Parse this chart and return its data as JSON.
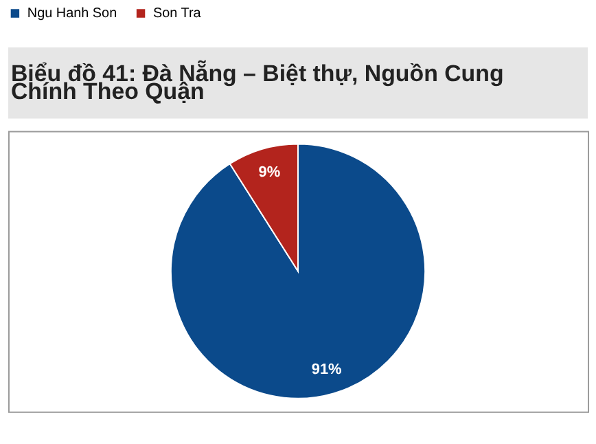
{
  "chart_data": {
    "type": "pie",
    "title": "Biểu đồ 41: Đà Nẵng – Biệt thự, Nguồn Cung Chính Theo Quận",
    "categories": [
      "Ngu Hanh Son",
      "Son Tra"
    ],
    "values": [
      91,
      9
    ],
    "value_labels": [
      "91%",
      "9%"
    ],
    "colors": [
      "#0b4a8b",
      "#b3241d"
    ],
    "legend": "top"
  }
}
